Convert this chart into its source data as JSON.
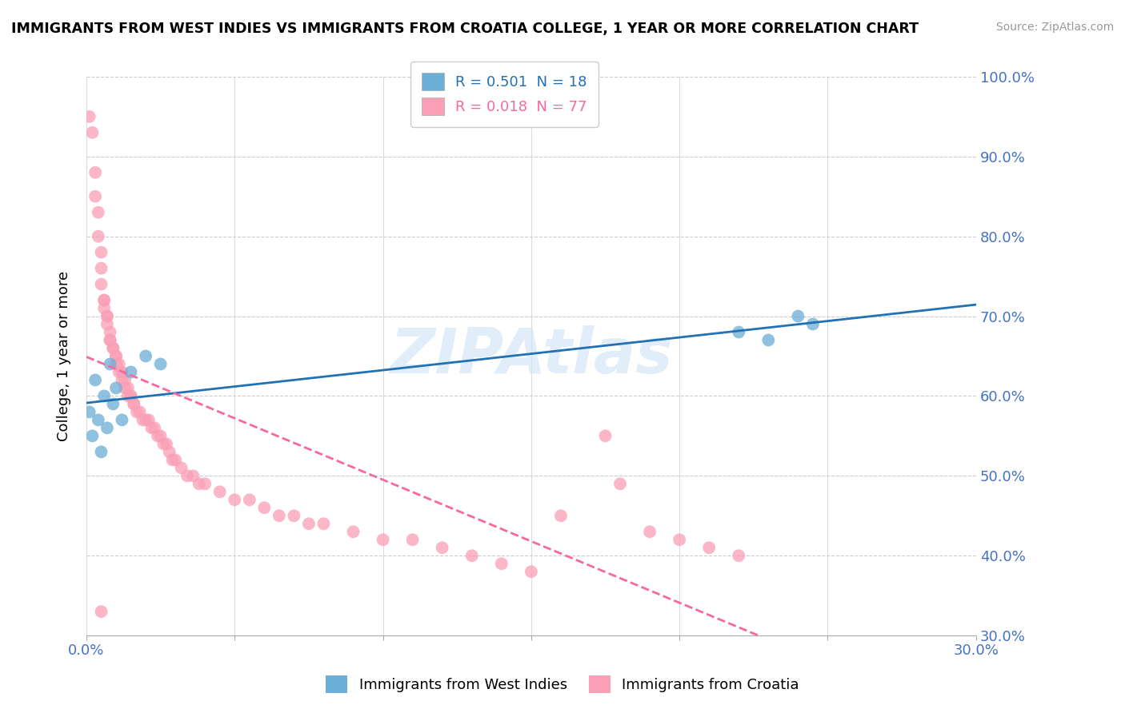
{
  "title": "IMMIGRANTS FROM WEST INDIES VS IMMIGRANTS FROM CROATIA COLLEGE, 1 YEAR OR MORE CORRELATION CHART",
  "source": "Source: ZipAtlas.com",
  "ylabel": "College, 1 year or more",
  "xlim": [
    0.0,
    0.3
  ],
  "ylim": [
    0.3,
    1.0
  ],
  "west_indies_R": 0.501,
  "west_indies_N": 18,
  "croatia_R": 0.018,
  "croatia_N": 77,
  "west_indies_color": "#6baed6",
  "croatia_color": "#fa9fb5",
  "west_indies_line_color": "#2171b5",
  "croatia_line_color": "#f768a1",
  "watermark": "ZIPAtlas",
  "background_color": "#ffffff",
  "grid_color": "#cccccc",
  "west_indies_x": [
    0.001,
    0.002,
    0.003,
    0.004,
    0.005,
    0.006,
    0.007,
    0.008,
    0.009,
    0.01,
    0.012,
    0.015,
    0.02,
    0.025,
    0.22,
    0.23,
    0.24,
    0.245
  ],
  "west_indies_y": [
    0.58,
    0.55,
    0.62,
    0.57,
    0.53,
    0.6,
    0.56,
    0.64,
    0.59,
    0.61,
    0.57,
    0.63,
    0.65,
    0.64,
    0.68,
    0.67,
    0.7,
    0.69
  ],
  "croatia_x": [
    0.001,
    0.002,
    0.003,
    0.003,
    0.004,
    0.004,
    0.005,
    0.005,
    0.005,
    0.006,
    0.006,
    0.006,
    0.007,
    0.007,
    0.007,
    0.008,
    0.008,
    0.008,
    0.009,
    0.009,
    0.01,
    0.01,
    0.01,
    0.011,
    0.011,
    0.012,
    0.012,
    0.013,
    0.013,
    0.014,
    0.014,
    0.015,
    0.015,
    0.016,
    0.016,
    0.017,
    0.018,
    0.019,
    0.02,
    0.021,
    0.022,
    0.023,
    0.024,
    0.025,
    0.026,
    0.027,
    0.028,
    0.029,
    0.03,
    0.032,
    0.034,
    0.036,
    0.038,
    0.04,
    0.045,
    0.05,
    0.055,
    0.06,
    0.065,
    0.07,
    0.075,
    0.08,
    0.09,
    0.1,
    0.11,
    0.12,
    0.13,
    0.14,
    0.15,
    0.16,
    0.175,
    0.18,
    0.19,
    0.2,
    0.21,
    0.22,
    0.005
  ],
  "croatia_y": [
    0.95,
    0.93,
    0.88,
    0.85,
    0.83,
    0.8,
    0.78,
    0.76,
    0.74,
    0.72,
    0.72,
    0.71,
    0.7,
    0.7,
    0.69,
    0.68,
    0.67,
    0.67,
    0.66,
    0.66,
    0.65,
    0.65,
    0.64,
    0.64,
    0.63,
    0.63,
    0.62,
    0.62,
    0.61,
    0.61,
    0.6,
    0.6,
    0.6,
    0.59,
    0.59,
    0.58,
    0.58,
    0.57,
    0.57,
    0.57,
    0.56,
    0.56,
    0.55,
    0.55,
    0.54,
    0.54,
    0.53,
    0.52,
    0.52,
    0.51,
    0.5,
    0.5,
    0.49,
    0.49,
    0.48,
    0.47,
    0.47,
    0.46,
    0.45,
    0.45,
    0.44,
    0.44,
    0.43,
    0.42,
    0.42,
    0.41,
    0.4,
    0.39,
    0.38,
    0.45,
    0.55,
    0.49,
    0.43,
    0.42,
    0.41,
    0.4,
    0.33
  ]
}
